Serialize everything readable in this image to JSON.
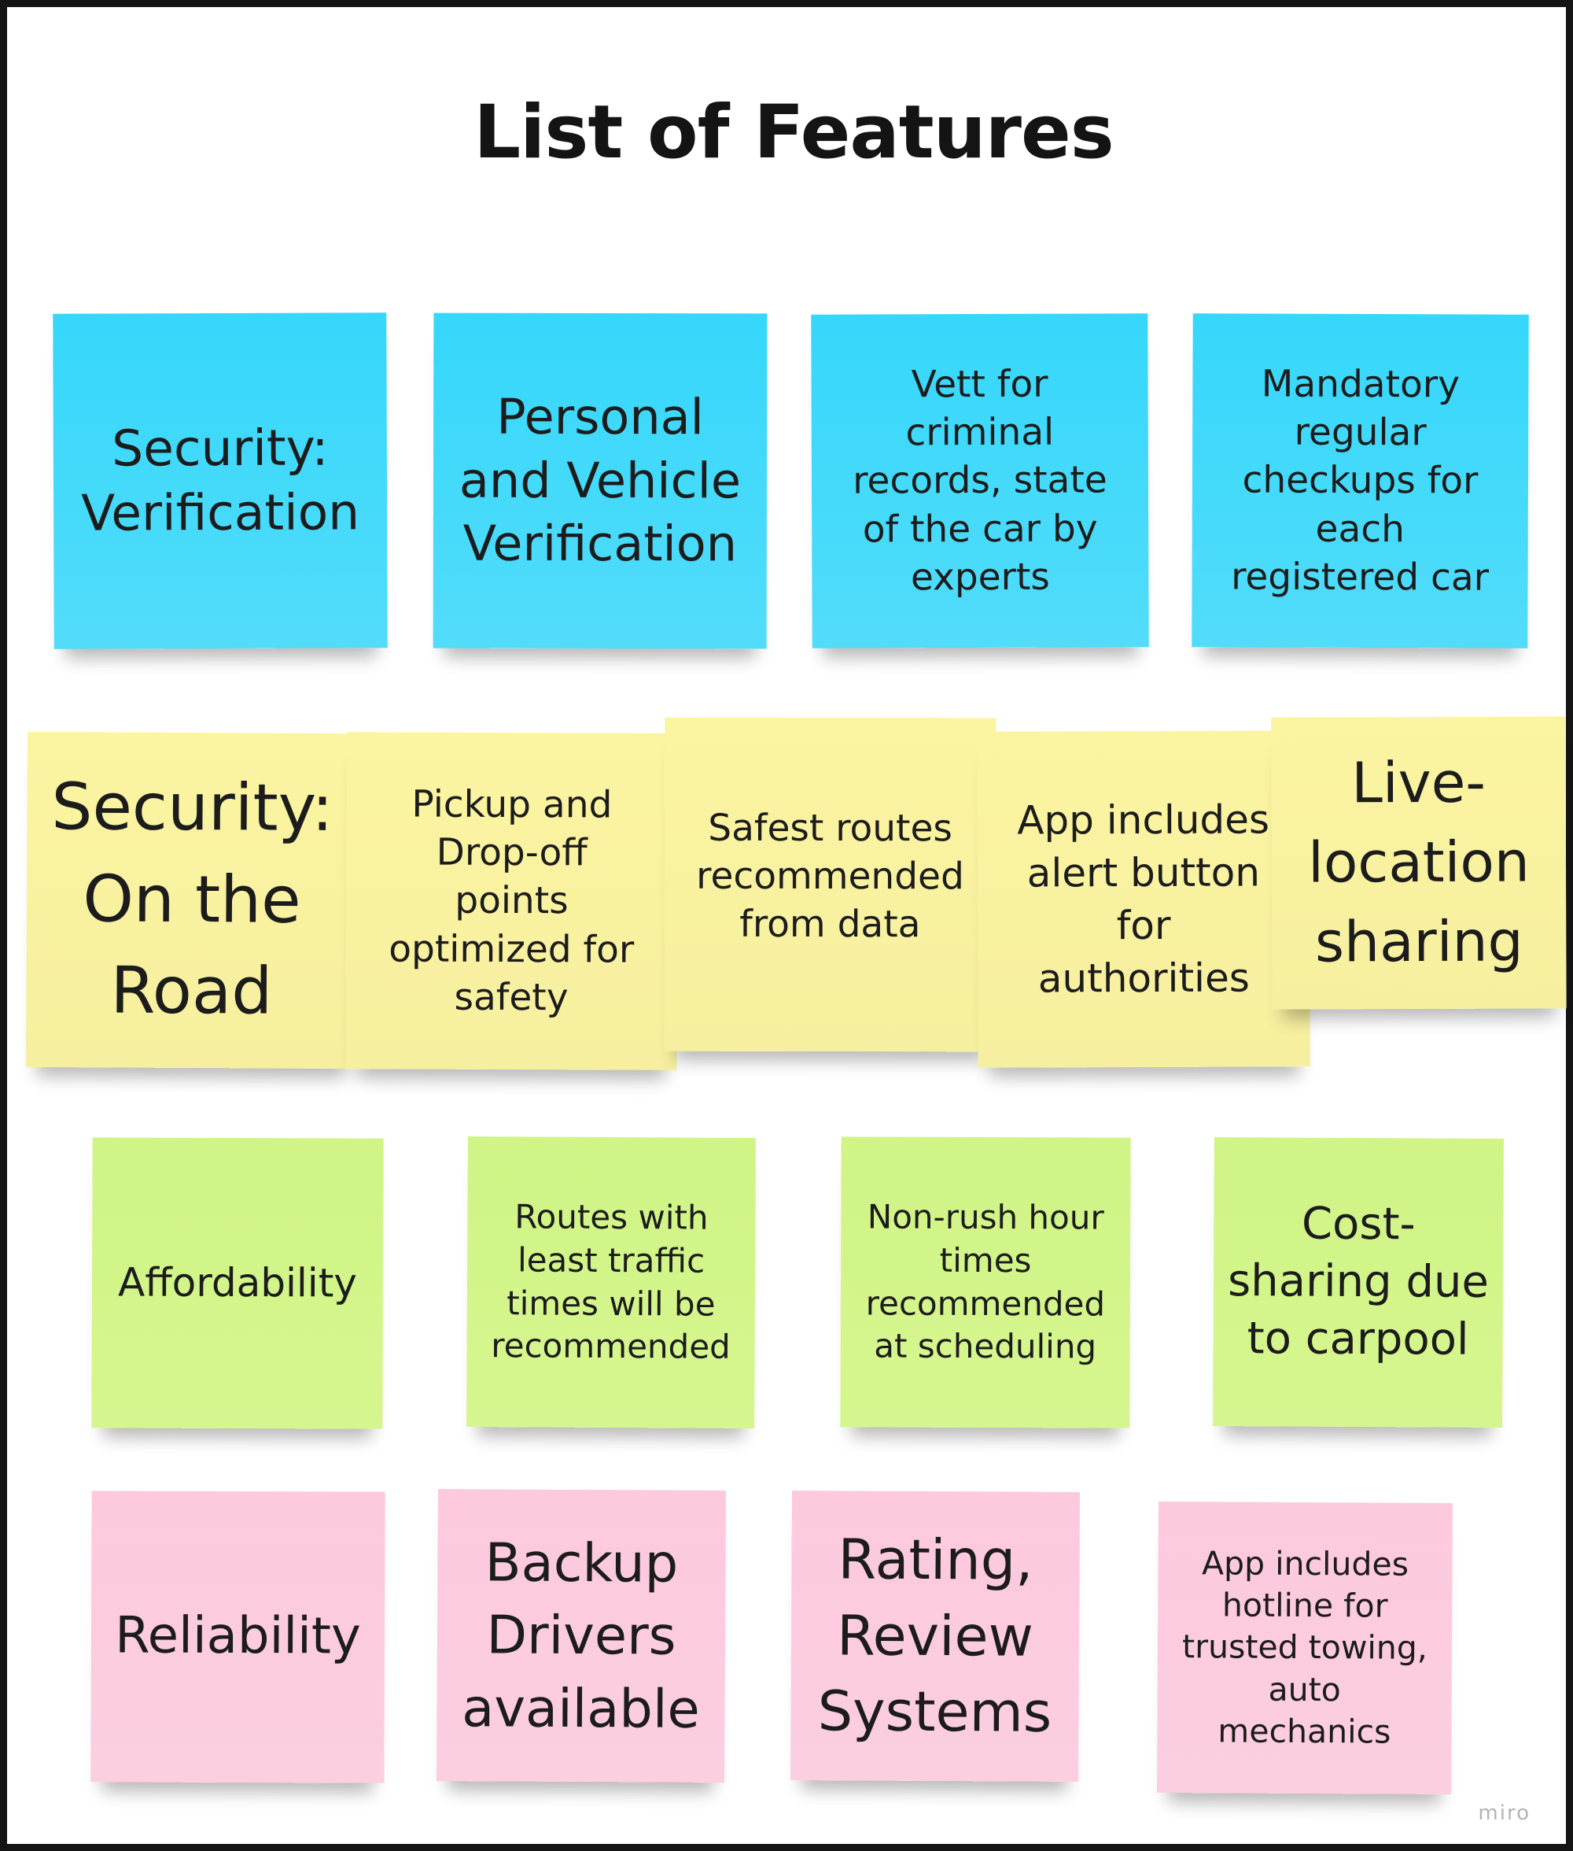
{
  "title": "List of Features",
  "watermark": "miro",
  "colors": {
    "blue": "#35d7fb",
    "yellow": "#fbf4a1",
    "green": "#d0f486",
    "pink": "#fdc9dd"
  },
  "rows": {
    "security_verification": {
      "header": "Security:\nVerification",
      "items": [
        "Personal\nand Vehicle\nVerification",
        "Vett for\ncriminal\nrecords, state\nof the car by\nexperts",
        "Mandatory\nregular\ncheckups for\neach\nregistered car"
      ]
    },
    "security_road": {
      "header": "Security:\nOn the\nRoad",
      "items": [
        "Pickup and\nDrop-off\npoints\noptimized for\nsafety",
        "Safest routes\nrecommended\nfrom data",
        "App includes\nalert button\nfor\nauthorities",
        "Live-\nlocation\nsharing"
      ]
    },
    "affordability": {
      "header": "Affordability",
      "items": [
        "Routes with\nleast traffic\ntimes will be\nrecommended",
        "Non-rush hour\ntimes\nrecommended\nat scheduling",
        "Cost-\nsharing due\nto carpool"
      ]
    },
    "reliability": {
      "header": "Reliability",
      "items": [
        "Backup\nDrivers\navailable",
        "Rating,\nReview\nSystems",
        "App includes\nhotline for\ntrusted towing,\nauto\nmechanics"
      ]
    }
  }
}
